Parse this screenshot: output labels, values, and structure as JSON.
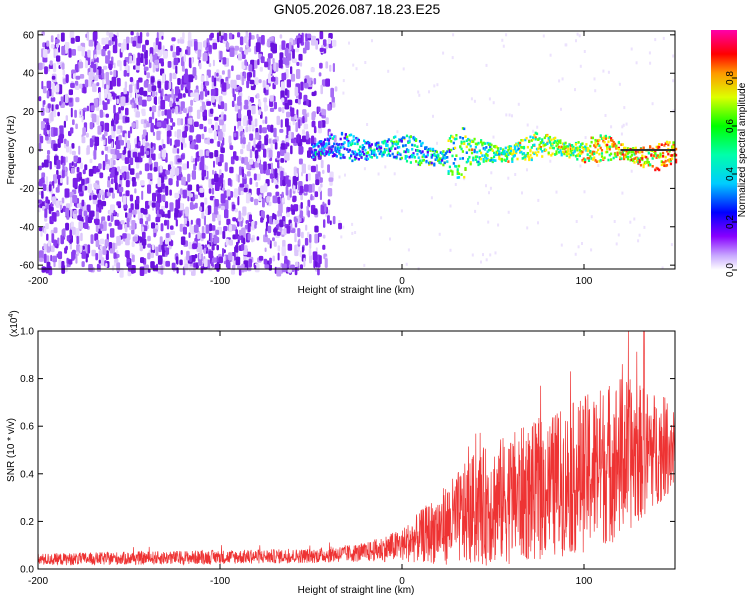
{
  "title": "GN05.2026.087.18.23.E25",
  "chart_data": [
    {
      "type": "heatmap",
      "name": "spectrogram",
      "xlabel": "Height of straight line (km)",
      "ylabel": "Frequency (Hz)",
      "xlim": [
        -200,
        150
      ],
      "ylim": [
        -62,
        62
      ],
      "x_ticks": [
        -200,
        -100,
        0,
        100
      ],
      "y_ticks": [
        -60,
        -40,
        -20,
        0,
        20,
        40,
        60
      ],
      "noise_region_x": [
        -200,
        -35
      ],
      "signal_region_x": [
        -50,
        150
      ],
      "signal_center_freq_hz": 0,
      "signal_bandwidth_hz": 8,
      "colorbar": {
        "label": "Normalized spectral amplitude",
        "range": [
          0.0,
          1.0
        ],
        "ticks": [
          "0.0",
          "0.2",
          "0.4",
          "0.6",
          "0.8"
        ],
        "colors": [
          "#ffffff",
          "#8800ff",
          "#0000ff",
          "#00ffff",
          "#00ff00",
          "#ffff00",
          "#ff8800",
          "#ff0000",
          "#ff00ff"
        ]
      }
    },
    {
      "type": "line",
      "name": "snr",
      "xlabel": "Height of straight line (km)",
      "ylabel": "SNR (10 * v/v)",
      "y_multiplier": "(x10",
      "y_exponent": "4",
      "y_multiplier_close": ")",
      "xlim": [
        -200,
        150
      ],
      "ylim": [
        0.0,
        1.0
      ],
      "x_ticks": [
        -200,
        -100,
        0,
        100
      ],
      "y_ticks": [
        "0.0",
        "0.2",
        "0.4",
        "0.6",
        "0.8",
        "1.0"
      ],
      "color": "#ee3333",
      "envelope": {
        "x": [
          -200,
          -150,
          -100,
          -50,
          -20,
          0,
          20,
          40,
          60,
          80,
          100,
          120,
          150
        ],
        "y_mean": [
          0.04,
          0.045,
          0.05,
          0.055,
          0.07,
          0.1,
          0.17,
          0.25,
          0.3,
          0.34,
          0.4,
          0.47,
          0.52
        ],
        "y_spread": [
          0.025,
          0.028,
          0.03,
          0.03,
          0.04,
          0.07,
          0.15,
          0.24,
          0.28,
          0.3,
          0.33,
          0.35,
          0.18
        ]
      },
      "peak_value": 1.0
    }
  ]
}
